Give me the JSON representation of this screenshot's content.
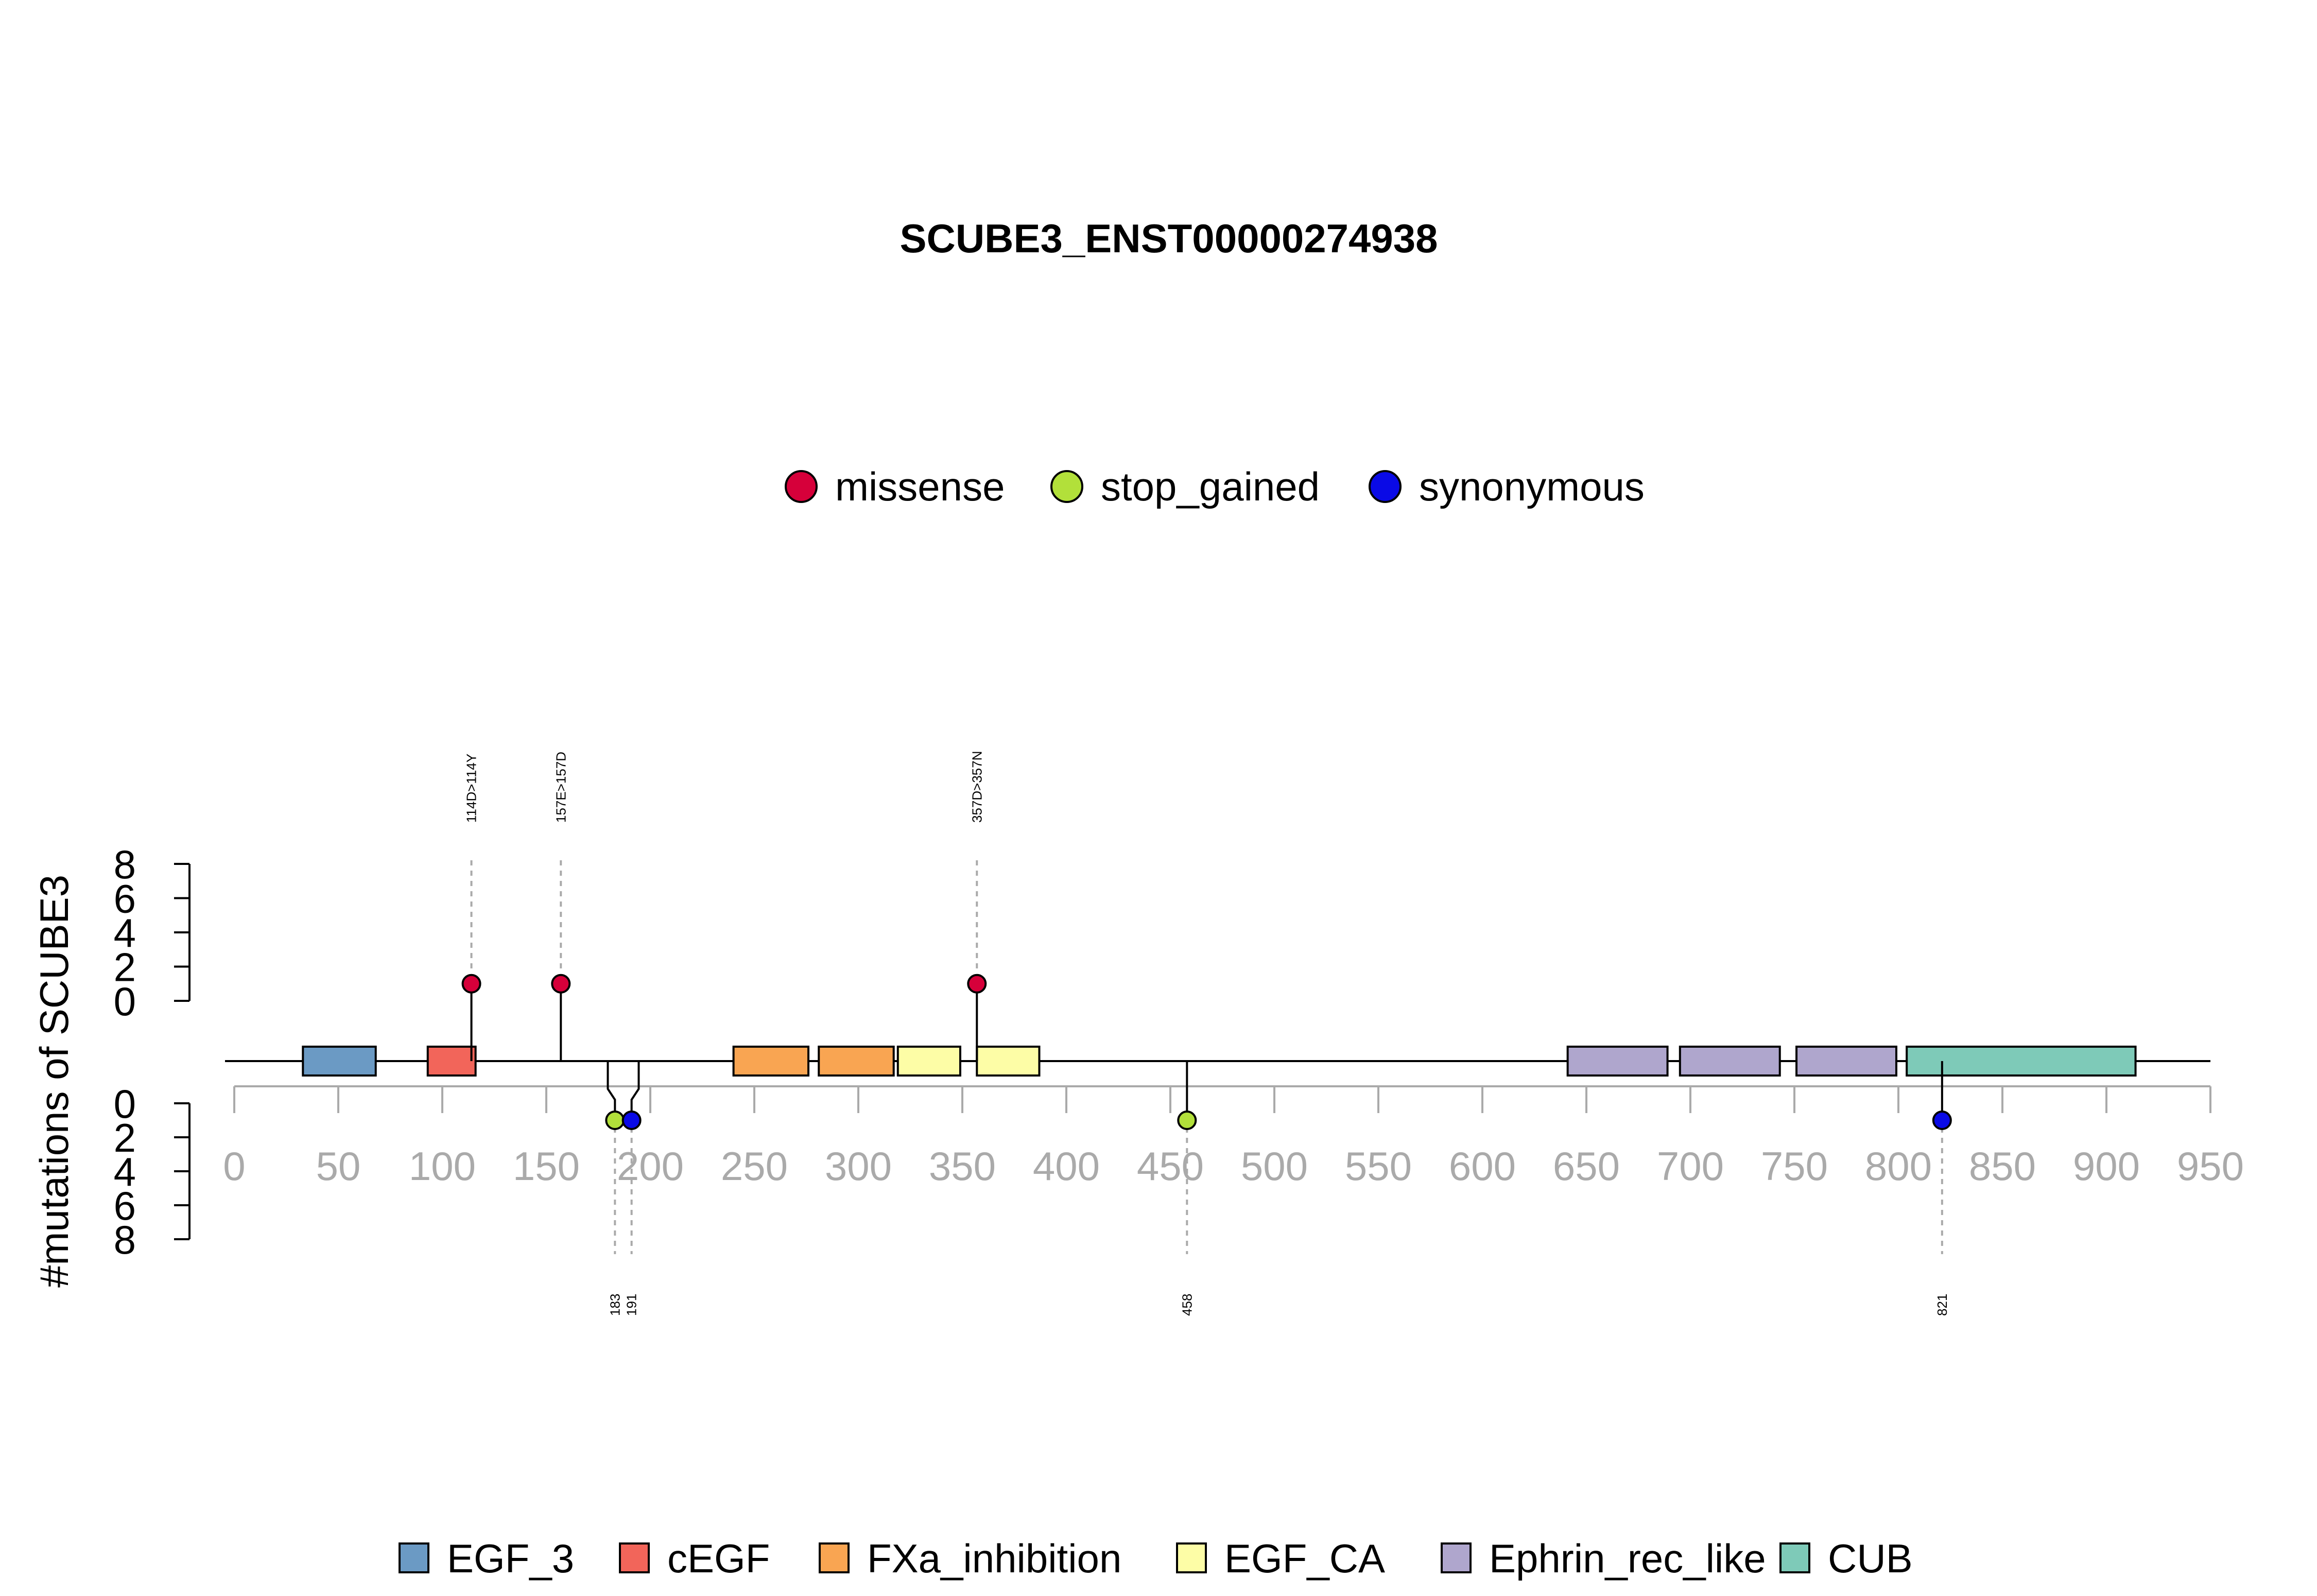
{
  "chart_data": {
    "type": "lollipop",
    "title": "SCUBE3_ENST00000274938",
    "ylabel": "#mutations of SCUBE3",
    "xlim": [
      0,
      950
    ],
    "x_ticks": [
      0,
      50,
      100,
      150,
      200,
      250,
      300,
      350,
      400,
      450,
      500,
      550,
      600,
      650,
      700,
      750,
      800,
      850,
      900,
      950
    ],
    "y_ticks": [
      0,
      2,
      4,
      6,
      8
    ],
    "ylim": [
      0,
      8
    ],
    "protein_length": 950,
    "mutation_types": [
      {
        "name": "missense",
        "color": "#d6003a"
      },
      {
        "name": "stop_gained",
        "color": "#b2e03a"
      },
      {
        "name": "synonymous",
        "color": "#0a0ae6"
      }
    ],
    "domain_types": [
      {
        "name": "EGF_3",
        "color": "#6b9ac4"
      },
      {
        "name": "cEGF",
        "color": "#f2655a"
      },
      {
        "name": "FXa_inhibition",
        "color": "#f9a552"
      },
      {
        "name": "EGF_CA",
        "color": "#fdfda6"
      },
      {
        "name": "Ephrin_rec_like",
        "color": "#afa6cd"
      },
      {
        "name": "CUB",
        "color": "#7ecab8"
      }
    ],
    "domains": [
      {
        "type": "EGF_3",
        "start": 33,
        "end": 68
      },
      {
        "type": "cEGF",
        "start": 93,
        "end": 116
      },
      {
        "type": "FXa_inhibition",
        "start": 240,
        "end": 276
      },
      {
        "type": "FXa_inhibition",
        "start": 281,
        "end": 317
      },
      {
        "type": "EGF_CA",
        "start": 319,
        "end": 349
      },
      {
        "type": "EGF_CA",
        "start": 357,
        "end": 387
      },
      {
        "type": "Ephrin_rec_like",
        "start": 641,
        "end": 689
      },
      {
        "type": "Ephrin_rec_like",
        "start": 695,
        "end": 743
      },
      {
        "type": "Ephrin_rec_like",
        "start": 751,
        "end": 799
      },
      {
        "type": "CUB",
        "start": 804,
        "end": 914
      }
    ],
    "mutations_top": [
      {
        "pos": 114,
        "count": 1,
        "type": "missense",
        "label": "114D>114Y"
      },
      {
        "pos": 157,
        "count": 1,
        "type": "missense",
        "label": "157E>157D"
      },
      {
        "pos": 357,
        "count": 1,
        "type": "missense",
        "label": "357D>357N"
      }
    ],
    "mutations_bottom": [
      {
        "pos": 183,
        "count": 1,
        "type": "stop_gained",
        "label": "183"
      },
      {
        "pos": 191,
        "count": 1,
        "type": "synonymous",
        "label": "191"
      },
      {
        "pos": 458,
        "count": 1,
        "type": "stop_gained",
        "label": "458"
      },
      {
        "pos": 821,
        "count": 1,
        "type": "synonymous",
        "label": "821"
      }
    ]
  }
}
